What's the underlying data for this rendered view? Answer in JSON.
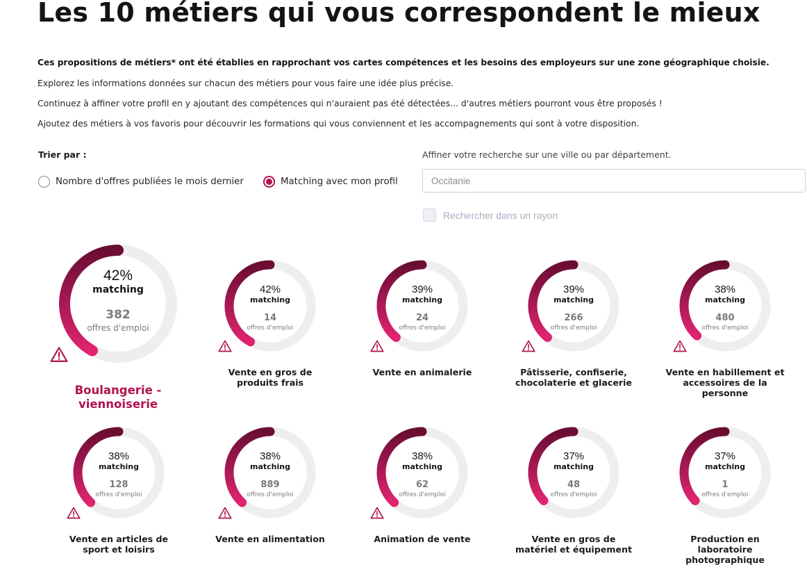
{
  "page": {
    "title": "Les 10 métiers qui vous correspondent le mieux",
    "intro_bold": "Ces propositions de métiers* ont été établies en rapprochant vos cartes compétences et les besoins des employeurs sur une zone géographique choisie.",
    "intro_lines": [
      "Explorez les informations données sur chacun des métiers pour vous faire une idée plus précise.",
      "Continuez à affiner votre profil en y ajoutant des compétences qui n'auraient pas été détectées... d'autres métiers pourront vous être proposés !",
      "Ajoutez des métiers à vos favoris pour découvrir les formations qui vous conviennent et les accompagnements qui sont à votre disposition."
    ]
  },
  "sort": {
    "label": "Trier par :",
    "options": [
      {
        "label": "Nombre d'offres publiées le mois dernier",
        "selected": false
      },
      {
        "label": "Matching avec mon profil",
        "selected": true
      }
    ]
  },
  "location": {
    "label": "Affiner votre recherche sur une ville ou par département.",
    "placeholder": "Occitanie",
    "value": "",
    "radius_label": "Rechercher dans un rayon",
    "radius_checked": false
  },
  "colors": {
    "accent": "#b0134f",
    "ring_start": "#e0246f",
    "ring_end": "#6a0d33",
    "ring_track": "#eeeeee"
  },
  "labels": {
    "matching": "matching",
    "offers": "offres d'emploi"
  },
  "jobs": [
    {
      "percent": "42%",
      "offers": "382",
      "name": "Boulangerie - viennoiserie",
      "warning": true,
      "fraction": 0.42
    },
    {
      "percent": "42%",
      "offers": "14",
      "name": "Vente en gros de produits frais",
      "warning": true,
      "fraction": 0.42
    },
    {
      "percent": "39%",
      "offers": "24",
      "name": "Vente en animalerie",
      "warning": true,
      "fraction": 0.39
    },
    {
      "percent": "39%",
      "offers": "266",
      "name": "Pâtisserie, confiserie, chocolaterie et glacerie",
      "warning": true,
      "fraction": 0.39
    },
    {
      "percent": "38%",
      "offers": "480",
      "name": "Vente en habillement et accessoires de la personne",
      "warning": true,
      "fraction": 0.38
    },
    {
      "percent": "38%",
      "offers": "128",
      "name": "Vente en articles de sport et loisirs",
      "warning": true,
      "fraction": 0.38
    },
    {
      "percent": "38%",
      "offers": "889",
      "name": "Vente en alimentation",
      "warning": true,
      "fraction": 0.38
    },
    {
      "percent": "38%",
      "offers": "62",
      "name": "Animation de vente",
      "warning": true,
      "fraction": 0.38
    },
    {
      "percent": "37%",
      "offers": "48",
      "name": "Vente en gros de matériel et équipement",
      "warning": false,
      "fraction": 0.37
    },
    {
      "percent": "37%",
      "offers": "1",
      "name": "Production en laboratoire photographique",
      "warning": false,
      "fraction": 0.37
    }
  ]
}
